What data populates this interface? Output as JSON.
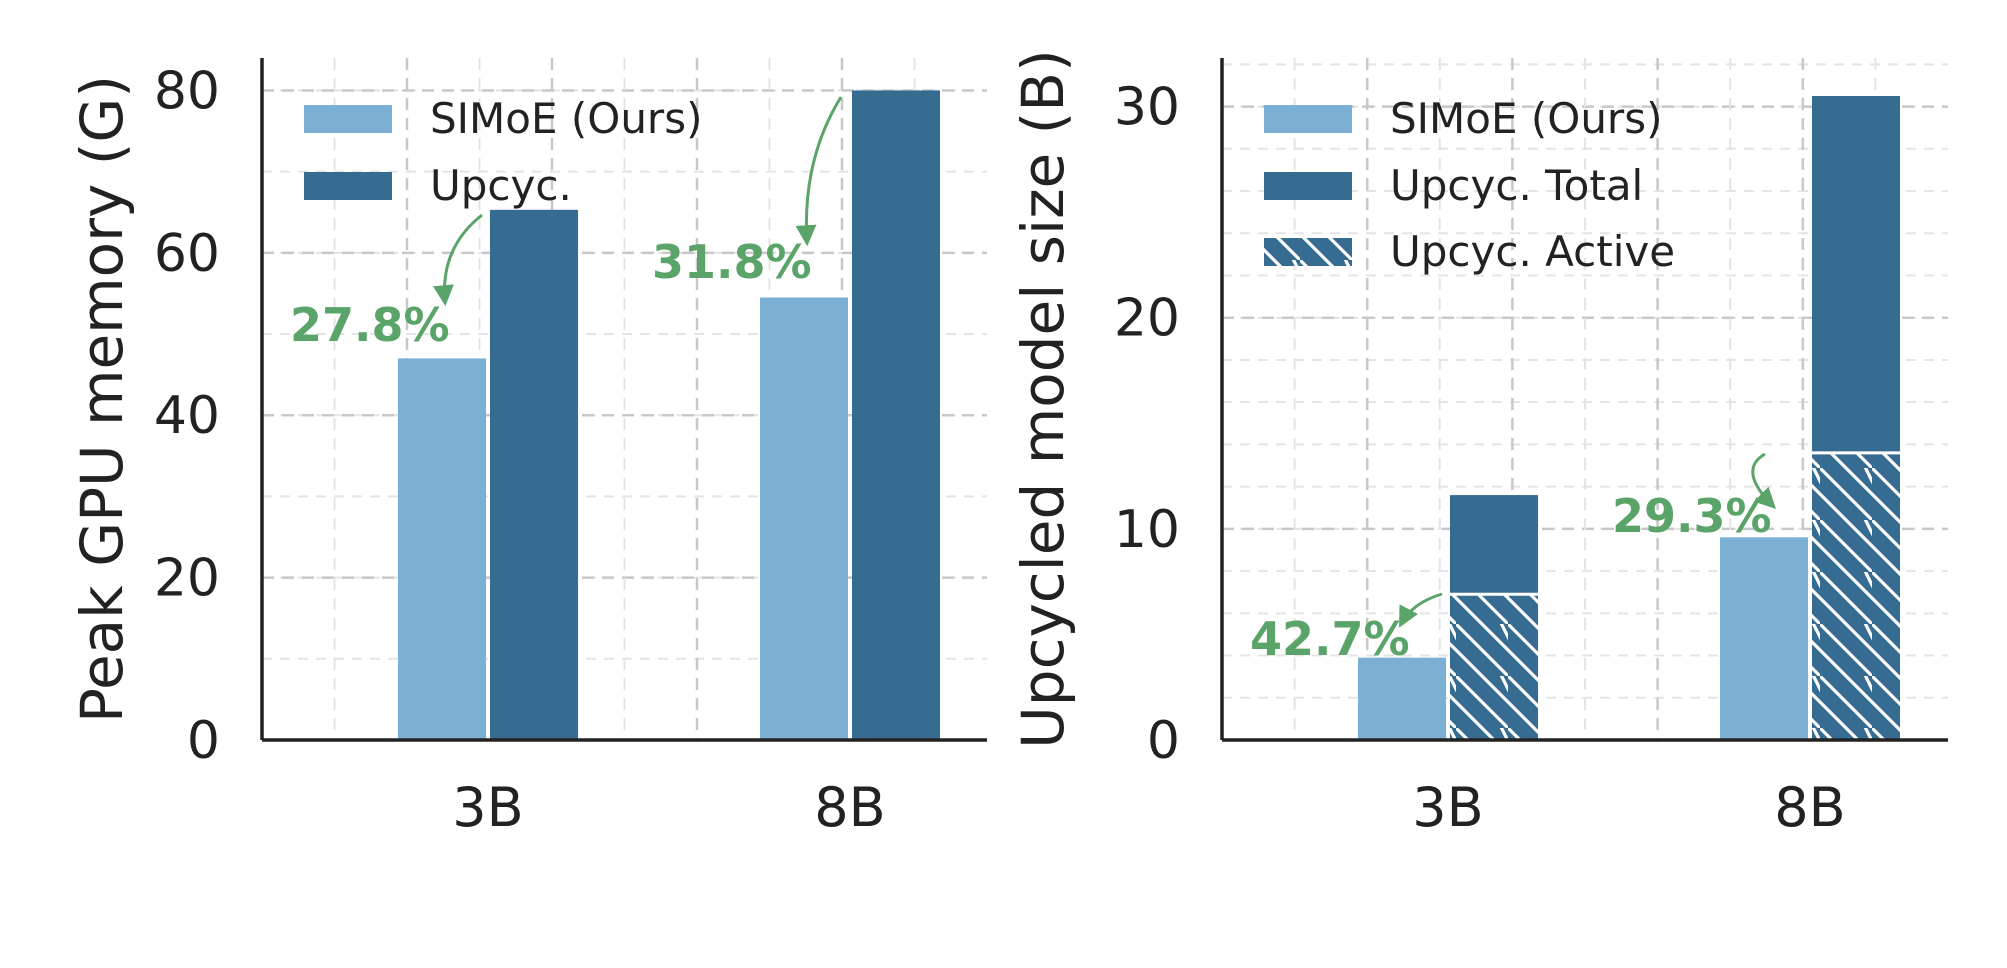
{
  "chart_data": [
    {
      "type": "bar",
      "ylabel": "Peak GPU memory (G)",
      "categories": [
        "3B",
        "8B"
      ],
      "ylim": [
        0,
        84
      ],
      "yticks": [
        0,
        20,
        40,
        60,
        80
      ],
      "grid": true,
      "legend_position": "top-left",
      "series": [
        {
          "name": "SIMoE (Ours)",
          "values": [
            47,
            54.5
          ],
          "color": "#7bafd4"
        },
        {
          "name": "Upcyc.",
          "values": [
            65.3,
            80
          ],
          "color": "#376c92"
        }
      ],
      "annotations": [
        {
          "text": "27.8%",
          "category": "3B"
        },
        {
          "text": "31.8%",
          "category": "8B"
        }
      ]
    },
    {
      "type": "bar",
      "ylabel": "Upcycled model size (B)",
      "categories": [
        "3B",
        "8B"
      ],
      "ylim": [
        0,
        32.3
      ],
      "yticks": [
        0,
        10,
        20,
        30
      ],
      "grid": true,
      "legend_position": "top-left",
      "series": [
        {
          "name": "SIMoE (Ours)",
          "values": [
            3.9,
            9.6
          ],
          "color": "#7bafd4"
        },
        {
          "name": "Upcyc. Total",
          "values": [
            11.6,
            30.5
          ],
          "color": "#376c92"
        },
        {
          "name": "Upcyc. Active",
          "values": [
            6.9,
            13.6
          ],
          "color": "#376c92",
          "pattern": "hatched"
        }
      ],
      "annotations": [
        {
          "text": "42.7%",
          "category": "3B"
        },
        {
          "text": "29.3%",
          "category": "8B"
        }
      ]
    }
  ],
  "colors": {
    "accent": "#5aa469",
    "axis": "#222222",
    "grid": "#d0d0d0"
  }
}
